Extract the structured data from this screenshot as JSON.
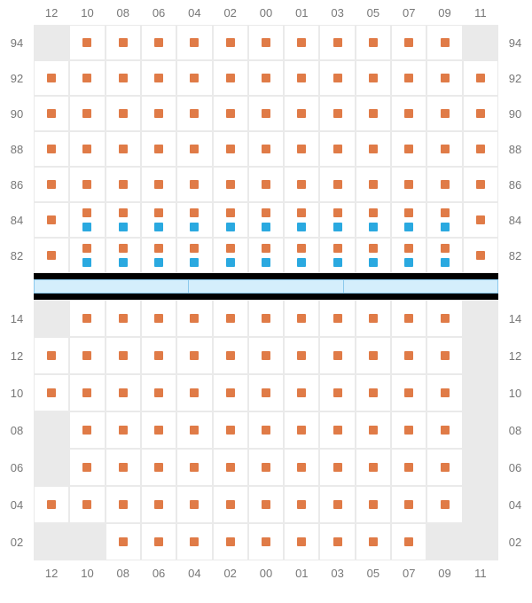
{
  "colors": {
    "marker_orange": "#e07b47",
    "marker_blue": "#2aa9e0",
    "cell_bg": "#ffffff",
    "empty_cell_bg": "#eaeaea",
    "grid_line": "#eaeaea",
    "label_text": "#777777",
    "divider_bg": "#000000",
    "divider_fill": "#d4eefc",
    "divider_border": "#8bc9ed"
  },
  "typography": {
    "label_fontsize": 13,
    "font_family": "Arial"
  },
  "columns": [
    "12",
    "10",
    "08",
    "06",
    "04",
    "02",
    "00",
    "01",
    "03",
    "05",
    "07",
    "09",
    "11"
  ],
  "upper": {
    "rows": [
      "94",
      "92",
      "90",
      "88",
      "86",
      "84",
      "82"
    ],
    "cells": [
      [
        {
          "empty": true
        },
        {
          "m": [
            "o"
          ]
        },
        {
          "m": [
            "o"
          ]
        },
        {
          "m": [
            "o"
          ]
        },
        {
          "m": [
            "o"
          ]
        },
        {
          "m": [
            "o"
          ]
        },
        {
          "m": [
            "o"
          ]
        },
        {
          "m": [
            "o"
          ]
        },
        {
          "m": [
            "o"
          ]
        },
        {
          "m": [
            "o"
          ]
        },
        {
          "m": [
            "o"
          ]
        },
        {
          "m": [
            "o"
          ]
        },
        {
          "empty": true
        }
      ],
      [
        {
          "m": [
            "o"
          ]
        },
        {
          "m": [
            "o"
          ]
        },
        {
          "m": [
            "o"
          ]
        },
        {
          "m": [
            "o"
          ]
        },
        {
          "m": [
            "o"
          ]
        },
        {
          "m": [
            "o"
          ]
        },
        {
          "m": [
            "o"
          ]
        },
        {
          "m": [
            "o"
          ]
        },
        {
          "m": [
            "o"
          ]
        },
        {
          "m": [
            "o"
          ]
        },
        {
          "m": [
            "o"
          ]
        },
        {
          "m": [
            "o"
          ]
        },
        {
          "m": [
            "o"
          ]
        }
      ],
      [
        {
          "m": [
            "o"
          ]
        },
        {
          "m": [
            "o"
          ]
        },
        {
          "m": [
            "o"
          ]
        },
        {
          "m": [
            "o"
          ]
        },
        {
          "m": [
            "o"
          ]
        },
        {
          "m": [
            "o"
          ]
        },
        {
          "m": [
            "o"
          ]
        },
        {
          "m": [
            "o"
          ]
        },
        {
          "m": [
            "o"
          ]
        },
        {
          "m": [
            "o"
          ]
        },
        {
          "m": [
            "o"
          ]
        },
        {
          "m": [
            "o"
          ]
        },
        {
          "m": [
            "o"
          ]
        }
      ],
      [
        {
          "m": [
            "o"
          ]
        },
        {
          "m": [
            "o"
          ]
        },
        {
          "m": [
            "o"
          ]
        },
        {
          "m": [
            "o"
          ]
        },
        {
          "m": [
            "o"
          ]
        },
        {
          "m": [
            "o"
          ]
        },
        {
          "m": [
            "o"
          ]
        },
        {
          "m": [
            "o"
          ]
        },
        {
          "m": [
            "o"
          ]
        },
        {
          "m": [
            "o"
          ]
        },
        {
          "m": [
            "o"
          ]
        },
        {
          "m": [
            "o"
          ]
        },
        {
          "m": [
            "o"
          ]
        }
      ],
      [
        {
          "m": [
            "o"
          ]
        },
        {
          "m": [
            "o"
          ]
        },
        {
          "m": [
            "o"
          ]
        },
        {
          "m": [
            "o"
          ]
        },
        {
          "m": [
            "o"
          ]
        },
        {
          "m": [
            "o"
          ]
        },
        {
          "m": [
            "o"
          ]
        },
        {
          "m": [
            "o"
          ]
        },
        {
          "m": [
            "o"
          ]
        },
        {
          "m": [
            "o"
          ]
        },
        {
          "m": [
            "o"
          ]
        },
        {
          "m": [
            "o"
          ]
        },
        {
          "m": [
            "o"
          ]
        }
      ],
      [
        {
          "m": [
            "o"
          ]
        },
        {
          "m": [
            "o",
            "b"
          ]
        },
        {
          "m": [
            "o",
            "b"
          ]
        },
        {
          "m": [
            "o",
            "b"
          ]
        },
        {
          "m": [
            "o",
            "b"
          ]
        },
        {
          "m": [
            "o",
            "b"
          ]
        },
        {
          "m": [
            "o",
            "b"
          ]
        },
        {
          "m": [
            "o",
            "b"
          ]
        },
        {
          "m": [
            "o",
            "b"
          ]
        },
        {
          "m": [
            "o",
            "b"
          ]
        },
        {
          "m": [
            "o",
            "b"
          ]
        },
        {
          "m": [
            "o",
            "b"
          ]
        },
        {
          "m": [
            "o"
          ]
        }
      ],
      [
        {
          "m": [
            "o"
          ]
        },
        {
          "m": [
            "o",
            "b"
          ]
        },
        {
          "m": [
            "o",
            "b"
          ]
        },
        {
          "m": [
            "o",
            "b"
          ]
        },
        {
          "m": [
            "o",
            "b"
          ]
        },
        {
          "m": [
            "o",
            "b"
          ]
        },
        {
          "m": [
            "o",
            "b"
          ]
        },
        {
          "m": [
            "o",
            "b"
          ]
        },
        {
          "m": [
            "o",
            "b"
          ]
        },
        {
          "m": [
            "o",
            "b"
          ]
        },
        {
          "m": [
            "o",
            "b"
          ]
        },
        {
          "m": [
            "o",
            "b"
          ]
        },
        {
          "m": [
            "o"
          ]
        }
      ]
    ]
  },
  "lower": {
    "rows": [
      "14",
      "12",
      "10",
      "08",
      "06",
      "04",
      "02"
    ],
    "cells": [
      [
        {
          "empty": true
        },
        {
          "m": [
            "o"
          ]
        },
        {
          "m": [
            "o"
          ]
        },
        {
          "m": [
            "o"
          ]
        },
        {
          "m": [
            "o"
          ]
        },
        {
          "m": [
            "o"
          ]
        },
        {
          "m": [
            "o"
          ]
        },
        {
          "m": [
            "o"
          ]
        },
        {
          "m": [
            "o"
          ]
        },
        {
          "m": [
            "o"
          ]
        },
        {
          "m": [
            "o"
          ]
        },
        {
          "m": [
            "o"
          ]
        },
        {
          "empty": true
        }
      ],
      [
        {
          "m": [
            "o"
          ]
        },
        {
          "m": [
            "o"
          ]
        },
        {
          "m": [
            "o"
          ]
        },
        {
          "m": [
            "o"
          ]
        },
        {
          "m": [
            "o"
          ]
        },
        {
          "m": [
            "o"
          ]
        },
        {
          "m": [
            "o"
          ]
        },
        {
          "m": [
            "o"
          ]
        },
        {
          "m": [
            "o"
          ]
        },
        {
          "m": [
            "o"
          ]
        },
        {
          "m": [
            "o"
          ]
        },
        {
          "m": [
            "o"
          ]
        },
        {
          "empty": true
        }
      ],
      [
        {
          "m": [
            "o"
          ]
        },
        {
          "m": [
            "o"
          ]
        },
        {
          "m": [
            "o"
          ]
        },
        {
          "m": [
            "o"
          ]
        },
        {
          "m": [
            "o"
          ]
        },
        {
          "m": [
            "o"
          ]
        },
        {
          "m": [
            "o"
          ]
        },
        {
          "m": [
            "o"
          ]
        },
        {
          "m": [
            "o"
          ]
        },
        {
          "m": [
            "o"
          ]
        },
        {
          "m": [
            "o"
          ]
        },
        {
          "m": [
            "o"
          ]
        },
        {
          "empty": true
        }
      ],
      [
        {
          "empty": true
        },
        {
          "m": [
            "o"
          ]
        },
        {
          "m": [
            "o"
          ]
        },
        {
          "m": [
            "o"
          ]
        },
        {
          "m": [
            "o"
          ]
        },
        {
          "m": [
            "o"
          ]
        },
        {
          "m": [
            "o"
          ]
        },
        {
          "m": [
            "o"
          ]
        },
        {
          "m": [
            "o"
          ]
        },
        {
          "m": [
            "o"
          ]
        },
        {
          "m": [
            "o"
          ]
        },
        {
          "m": [
            "o"
          ]
        },
        {
          "empty": true
        }
      ],
      [
        {
          "empty": true
        },
        {
          "m": [
            "o"
          ]
        },
        {
          "m": [
            "o"
          ]
        },
        {
          "m": [
            "o"
          ]
        },
        {
          "m": [
            "o"
          ]
        },
        {
          "m": [
            "o"
          ]
        },
        {
          "m": [
            "o"
          ]
        },
        {
          "m": [
            "o"
          ]
        },
        {
          "m": [
            "o"
          ]
        },
        {
          "m": [
            "o"
          ]
        },
        {
          "m": [
            "o"
          ]
        },
        {
          "m": [
            "o"
          ]
        },
        {
          "empty": true
        }
      ],
      [
        {
          "m": [
            "o"
          ]
        },
        {
          "m": [
            "o"
          ]
        },
        {
          "m": [
            "o"
          ]
        },
        {
          "m": [
            "o"
          ]
        },
        {
          "m": [
            "o"
          ]
        },
        {
          "m": [
            "o"
          ]
        },
        {
          "m": [
            "o"
          ]
        },
        {
          "m": [
            "o"
          ]
        },
        {
          "m": [
            "o"
          ]
        },
        {
          "m": [
            "o"
          ]
        },
        {
          "m": [
            "o"
          ]
        },
        {
          "m": [
            "o"
          ]
        },
        {
          "empty": true
        }
      ],
      [
        {
          "empty": true
        },
        {
          "empty": true
        },
        {
          "m": [
            "o"
          ]
        },
        {
          "m": [
            "o"
          ]
        },
        {
          "m": [
            "o"
          ]
        },
        {
          "m": [
            "o"
          ]
        },
        {
          "m": [
            "o"
          ]
        },
        {
          "m": [
            "o"
          ]
        },
        {
          "m": [
            "o"
          ]
        },
        {
          "m": [
            "o"
          ]
        },
        {
          "m": [
            "o"
          ]
        },
        {
          "empty": true
        },
        {
          "empty": true
        }
      ]
    ]
  },
  "divider": {
    "segments": 3
  },
  "dimensions": {
    "cell_w": 40.3,
    "upper_cell_h": 40,
    "lower_cell_h": 42,
    "marker_size": 10
  }
}
